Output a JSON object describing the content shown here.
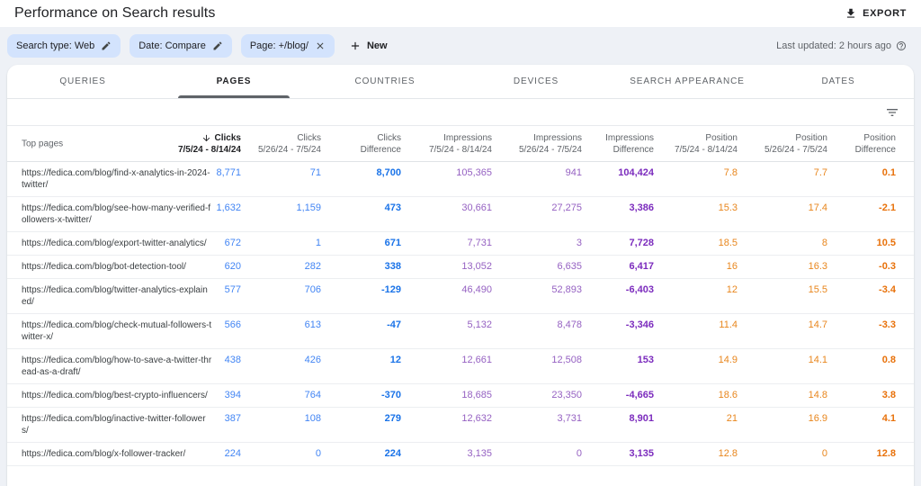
{
  "header": {
    "title": "Performance on Search results",
    "export_label": "EXPORT"
  },
  "filter_bar": {
    "chips": [
      {
        "label": "Search type: Web",
        "action": "edit"
      },
      {
        "label": "Date: Compare",
        "action": "edit"
      },
      {
        "label": "Page: +/blog/",
        "action": "remove"
      }
    ],
    "new_button_label": "New",
    "last_updated": "Last updated: 2 hours ago"
  },
  "tabs": [
    {
      "label": "QUERIES",
      "active": false
    },
    {
      "label": "PAGES",
      "active": true
    },
    {
      "label": "COUNTRIES",
      "active": false
    },
    {
      "label": "DEVICES",
      "active": false
    },
    {
      "label": "SEARCH APPEARANCE",
      "active": false
    },
    {
      "label": "DATES",
      "active": false
    }
  ],
  "table": {
    "row_header": "Top pages",
    "columns": [
      {
        "metric": "Clicks",
        "range": "7/5/24 - 8/14/24",
        "group": "clicks",
        "kind": "current",
        "sorted": true
      },
      {
        "metric": "Clicks",
        "range": "5/26/24 - 7/5/24",
        "group": "clicks",
        "kind": "previous",
        "sorted": false
      },
      {
        "metric": "Clicks",
        "range": "Difference",
        "group": "clicks",
        "kind": "difference",
        "sorted": false
      },
      {
        "metric": "Impressions",
        "range": "7/5/24 - 8/14/24",
        "group": "impressions",
        "kind": "current",
        "sorted": false
      },
      {
        "metric": "Impressions",
        "range": "5/26/24 - 7/5/24",
        "group": "impressions",
        "kind": "previous",
        "sorted": false
      },
      {
        "metric": "Impressions",
        "range": "Difference",
        "group": "impressions",
        "kind": "difference",
        "sorted": false
      },
      {
        "metric": "Position",
        "range": "7/5/24 - 8/14/24",
        "group": "position",
        "kind": "current",
        "sorted": false
      },
      {
        "metric": "Position",
        "range": "5/26/24 - 7/5/24",
        "group": "position",
        "kind": "previous",
        "sorted": false
      },
      {
        "metric": "Position",
        "range": "Difference",
        "group": "position",
        "kind": "difference",
        "sorted": false
      }
    ],
    "rows": [
      {
        "page": "https://fedica.com/blog/find-x-analytics-in-2024-twitter/",
        "values": [
          "8,771",
          "71",
          "8,700",
          "105,365",
          "941",
          "104,424",
          "7.8",
          "7.7",
          "0.1"
        ]
      },
      {
        "page": "https://fedica.com/blog/see-how-many-verified-followers-x-twitter/",
        "values": [
          "1,632",
          "1,159",
          "473",
          "30,661",
          "27,275",
          "3,386",
          "15.3",
          "17.4",
          "-2.1"
        ]
      },
      {
        "page": "https://fedica.com/blog/export-twitter-analytics/",
        "values": [
          "672",
          "1",
          "671",
          "7,731",
          "3",
          "7,728",
          "18.5",
          "8",
          "10.5"
        ]
      },
      {
        "page": "https://fedica.com/blog/bot-detection-tool/",
        "values": [
          "620",
          "282",
          "338",
          "13,052",
          "6,635",
          "6,417",
          "16",
          "16.3",
          "-0.3"
        ]
      },
      {
        "page": "https://fedica.com/blog/twitter-analytics-explained/",
        "values": [
          "577",
          "706",
          "-129",
          "46,490",
          "52,893",
          "-6,403",
          "12",
          "15.5",
          "-3.4"
        ]
      },
      {
        "page": "https://fedica.com/blog/check-mutual-followers-twitter-x/",
        "values": [
          "566",
          "613",
          "-47",
          "5,132",
          "8,478",
          "-3,346",
          "11.4",
          "14.7",
          "-3.3"
        ]
      },
      {
        "page": "https://fedica.com/blog/how-to-save-a-twitter-thread-as-a-draft/",
        "values": [
          "438",
          "426",
          "12",
          "12,661",
          "12,508",
          "153",
          "14.9",
          "14.1",
          "0.8"
        ]
      },
      {
        "page": "https://fedica.com/blog/best-crypto-influencers/",
        "values": [
          "394",
          "764",
          "-370",
          "18,685",
          "23,350",
          "-4,665",
          "18.6",
          "14.8",
          "3.8"
        ]
      },
      {
        "page": "https://fedica.com/blog/inactive-twitter-followers/",
        "values": [
          "387",
          "108",
          "279",
          "12,632",
          "3,731",
          "8,901",
          "21",
          "16.9",
          "4.1"
        ]
      },
      {
        "page": "https://fedica.com/blog/x-follower-tracker/",
        "values": [
          "224",
          "0",
          "224",
          "3,135",
          "0",
          "3,135",
          "12.8",
          "0",
          "12.8"
        ]
      }
    ]
  },
  "colors": {
    "clicks": "#4285f4",
    "clicks_difference": "#1a73e8",
    "impressions": "#9561c2",
    "impressions_difference": "#7b2bbd",
    "position": "#e8861d",
    "position_difference": "#e8710a",
    "chip_background": "#d3e3fd"
  }
}
